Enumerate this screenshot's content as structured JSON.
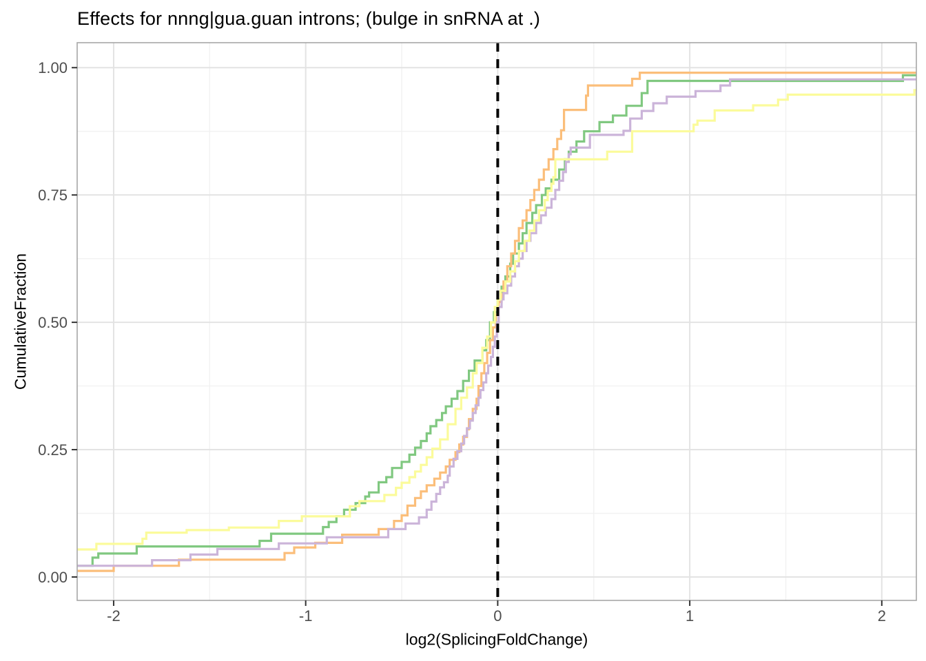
{
  "title": "Effects for nnng|gua.guan introns; (bulge in snRNA at .)",
  "chart_data": {
    "type": "line",
    "subtype": "step-ecdf",
    "title": "Effects for nnng|gua.guan introns; (bulge in snRNA at .)",
    "xlabel": "log2(SplicingFoldChange)",
    "ylabel": "CumulativeFraction",
    "xlim": [
      -2.19,
      2.18
    ],
    "ylim": [
      -0.046,
      1.049
    ],
    "grid": true,
    "legend": "none",
    "x_ticks": [
      {
        "v": -2,
        "label": "-2"
      },
      {
        "v": -1,
        "label": "-1"
      },
      {
        "v": 0,
        "label": "0"
      },
      {
        "v": 1,
        "label": "1"
      },
      {
        "v": 2,
        "label": "2"
      }
    ],
    "y_ticks": [
      {
        "v": 0.0,
        "label": "0.00"
      },
      {
        "v": 0.25,
        "label": "0.25"
      },
      {
        "v": 0.5,
        "label": "0.50"
      },
      {
        "v": 0.75,
        "label": "0.75"
      },
      {
        "v": 1.0,
        "label": "1.00"
      }
    ],
    "x_minor": [
      -1.5,
      -0.5,
      0.5,
      1.5
    ],
    "y_minor": [
      0.125,
      0.375,
      0.625,
      0.875
    ],
    "vline": {
      "x": 0,
      "color": "#000000",
      "dash": [
        13,
        11
      ],
      "width": 4
    },
    "colors": {
      "grid_major": "#E3E3E3",
      "grid_minor": "#F1F1F1",
      "panel_border": "#A6A6A6",
      "tick": "#333333",
      "tick_label": "#4D4D4D",
      "title_text": "#000000"
    },
    "series": [
      {
        "name": "green",
        "color": "#80C880",
        "start": 0.022,
        "points": [
          [
            -2.11,
            0.038
          ],
          [
            -2.08,
            0.046
          ],
          [
            -1.88,
            0.06
          ],
          [
            -1.24,
            0.071
          ],
          [
            -1.18,
            0.085
          ],
          [
            -0.91,
            0.098
          ],
          [
            -0.88,
            0.108
          ],
          [
            -0.84,
            0.119
          ],
          [
            -0.8,
            0.132
          ],
          [
            -0.74,
            0.145
          ],
          [
            -0.69,
            0.158
          ],
          [
            -0.67,
            0.166
          ],
          [
            -0.62,
            0.186
          ],
          [
            -0.58,
            0.196
          ],
          [
            -0.55,
            0.214
          ],
          [
            -0.5,
            0.226
          ],
          [
            -0.46,
            0.24
          ],
          [
            -0.43,
            0.254
          ],
          [
            -0.4,
            0.267
          ],
          [
            -0.37,
            0.282
          ],
          [
            -0.35,
            0.296
          ],
          [
            -0.32,
            0.308
          ],
          [
            -0.29,
            0.322
          ],
          [
            -0.27,
            0.335
          ],
          [
            -0.24,
            0.35
          ],
          [
            -0.21,
            0.365
          ],
          [
            -0.18,
            0.385
          ],
          [
            -0.15,
            0.405
          ],
          [
            -0.12,
            0.425
          ],
          [
            -0.08,
            0.445
          ],
          [
            -0.06,
            0.465
          ],
          [
            -0.04,
            0.5
          ],
          [
            -0.02,
            0.52
          ],
          [
            0.0,
            0.545
          ],
          [
            0.02,
            0.57
          ],
          [
            0.04,
            0.59
          ],
          [
            0.065,
            0.615
          ],
          [
            0.08,
            0.635
          ],
          [
            0.11,
            0.655
          ],
          [
            0.13,
            0.675
          ],
          [
            0.15,
            0.695
          ],
          [
            0.18,
            0.715
          ],
          [
            0.2,
            0.73
          ],
          [
            0.23,
            0.75
          ],
          [
            0.25,
            0.763
          ],
          [
            0.28,
            0.78
          ],
          [
            0.32,
            0.8
          ],
          [
            0.35,
            0.82
          ],
          [
            0.37,
            0.835
          ],
          [
            0.41,
            0.855
          ],
          [
            0.45,
            0.875
          ],
          [
            0.53,
            0.893
          ],
          [
            0.6,
            0.906
          ],
          [
            0.67,
            0.925
          ],
          [
            0.75,
            0.95
          ],
          [
            0.78,
            0.974
          ],
          [
            2.11,
            0.985
          ]
        ]
      },
      {
        "name": "orange",
        "color": "#FBBE7A",
        "start": 0.012,
        "points": [
          [
            -2.0,
            0.022
          ],
          [
            -1.66,
            0.034
          ],
          [
            -1.11,
            0.047
          ],
          [
            -1.06,
            0.058
          ],
          [
            -0.95,
            0.067
          ],
          [
            -0.81,
            0.083
          ],
          [
            -0.62,
            0.094
          ],
          [
            -0.54,
            0.11
          ],
          [
            -0.5,
            0.121
          ],
          [
            -0.47,
            0.14
          ],
          [
            -0.43,
            0.155
          ],
          [
            -0.4,
            0.168
          ],
          [
            -0.37,
            0.18
          ],
          [
            -0.33,
            0.193
          ],
          [
            -0.3,
            0.205
          ],
          [
            -0.27,
            0.217
          ],
          [
            -0.25,
            0.23
          ],
          [
            -0.22,
            0.245
          ],
          [
            -0.2,
            0.26
          ],
          [
            -0.18,
            0.275
          ],
          [
            -0.16,
            0.29
          ],
          [
            -0.15,
            0.31
          ],
          [
            -0.13,
            0.33
          ],
          [
            -0.11,
            0.35
          ],
          [
            -0.1,
            0.375
          ],
          [
            -0.085,
            0.4
          ],
          [
            -0.07,
            0.42
          ],
          [
            -0.055,
            0.44
          ],
          [
            -0.04,
            0.465
          ],
          [
            -0.025,
            0.49
          ],
          [
            -0.01,
            0.515
          ],
          [
            0.005,
            0.54
          ],
          [
            0.02,
            0.555
          ],
          [
            0.03,
            0.58
          ],
          [
            0.05,
            0.61
          ],
          [
            0.07,
            0.635
          ],
          [
            0.09,
            0.66
          ],
          [
            0.11,
            0.685
          ],
          [
            0.13,
            0.7
          ],
          [
            0.15,
            0.72
          ],
          [
            0.17,
            0.74
          ],
          [
            0.19,
            0.76
          ],
          [
            0.215,
            0.78
          ],
          [
            0.24,
            0.8
          ],
          [
            0.265,
            0.82
          ],
          [
            0.29,
            0.84
          ],
          [
            0.31,
            0.86
          ],
          [
            0.33,
            0.877
          ],
          [
            0.345,
            0.917
          ],
          [
            0.46,
            0.945
          ],
          [
            0.47,
            0.965
          ],
          [
            0.7,
            0.978
          ],
          [
            0.74,
            0.99
          ]
        ]
      },
      {
        "name": "purple",
        "color": "#CBB4D9",
        "start": 0.022,
        "points": [
          [
            -1.8,
            0.033
          ],
          [
            -1.6,
            0.044
          ],
          [
            -1.46,
            0.055
          ],
          [
            -1.14,
            0.066
          ],
          [
            -0.89,
            0.078
          ],
          [
            -0.57,
            0.094
          ],
          [
            -0.48,
            0.105
          ],
          [
            -0.41,
            0.117
          ],
          [
            -0.37,
            0.132
          ],
          [
            -0.345,
            0.148
          ],
          [
            -0.32,
            0.163
          ],
          [
            -0.3,
            0.176
          ],
          [
            -0.28,
            0.186
          ],
          [
            -0.26,
            0.199
          ],
          [
            -0.25,
            0.217
          ],
          [
            -0.23,
            0.232
          ],
          [
            -0.21,
            0.247
          ],
          [
            -0.19,
            0.262
          ],
          [
            -0.175,
            0.277
          ],
          [
            -0.16,
            0.292
          ],
          [
            -0.145,
            0.307
          ],
          [
            -0.13,
            0.322
          ],
          [
            -0.115,
            0.337
          ],
          [
            -0.1,
            0.352
          ],
          [
            -0.09,
            0.367
          ],
          [
            -0.075,
            0.382
          ],
          [
            -0.06,
            0.4
          ],
          [
            -0.05,
            0.415
          ],
          [
            -0.035,
            0.432
          ],
          [
            -0.025,
            0.452
          ],
          [
            -0.015,
            0.472
          ],
          [
            -0.005,
            0.5
          ],
          [
            0.005,
            0.53
          ],
          [
            0.02,
            0.545
          ],
          [
            0.03,
            0.557
          ],
          [
            0.05,
            0.572
          ],
          [
            0.07,
            0.59
          ],
          [
            0.09,
            0.61
          ],
          [
            0.11,
            0.625
          ],
          [
            0.13,
            0.64
          ],
          [
            0.15,
            0.66
          ],
          [
            0.17,
            0.675
          ],
          [
            0.2,
            0.695
          ],
          [
            0.225,
            0.71
          ],
          [
            0.25,
            0.725
          ],
          [
            0.28,
            0.742
          ],
          [
            0.3,
            0.76
          ],
          [
            0.32,
            0.778
          ],
          [
            0.34,
            0.795
          ],
          [
            0.355,
            0.815
          ],
          [
            0.37,
            0.83
          ],
          [
            0.38,
            0.843
          ],
          [
            0.48,
            0.868
          ],
          [
            0.655,
            0.876
          ],
          [
            0.69,
            0.9
          ],
          [
            0.75,
            0.915
          ],
          [
            0.81,
            0.93
          ],
          [
            0.88,
            0.943
          ],
          [
            1.03,
            0.954
          ],
          [
            1.16,
            0.965
          ],
          [
            1.21,
            0.977
          ]
        ]
      },
      {
        "name": "yellow",
        "color": "#FBFB9B",
        "start": 0.054,
        "points": [
          [
            -2.09,
            0.065
          ],
          [
            -1.85,
            0.075
          ],
          [
            -1.83,
            0.087
          ],
          [
            -1.62,
            0.092
          ],
          [
            -1.4,
            0.097
          ],
          [
            -1.14,
            0.11
          ],
          [
            -1.02,
            0.119
          ],
          [
            -0.77,
            0.139
          ],
          [
            -0.72,
            0.149
          ],
          [
            -0.59,
            0.161
          ],
          [
            -0.53,
            0.175
          ],
          [
            -0.5,
            0.185
          ],
          [
            -0.46,
            0.196
          ],
          [
            -0.43,
            0.207
          ],
          [
            -0.4,
            0.22
          ],
          [
            -0.37,
            0.235
          ],
          [
            -0.34,
            0.252
          ],
          [
            -0.3,
            0.27
          ],
          [
            -0.26,
            0.3
          ],
          [
            -0.22,
            0.33
          ],
          [
            -0.19,
            0.352
          ],
          [
            -0.16,
            0.372
          ],
          [
            -0.13,
            0.4
          ],
          [
            -0.11,
            0.42
          ],
          [
            -0.08,
            0.45
          ],
          [
            -0.055,
            0.472
          ],
          [
            -0.035,
            0.5
          ],
          [
            -0.015,
            0.53
          ],
          [
            0.0,
            0.545
          ],
          [
            0.015,
            0.562
          ],
          [
            0.04,
            0.58
          ],
          [
            0.065,
            0.6
          ],
          [
            0.09,
            0.62
          ],
          [
            0.11,
            0.64
          ],
          [
            0.14,
            0.66
          ],
          [
            0.165,
            0.68
          ],
          [
            0.19,
            0.7
          ],
          [
            0.215,
            0.72
          ],
          [
            0.245,
            0.74
          ],
          [
            0.26,
            0.758
          ],
          [
            0.28,
            0.772
          ],
          [
            0.29,
            0.785
          ],
          [
            0.3,
            0.82
          ],
          [
            0.57,
            0.835
          ],
          [
            0.7,
            0.875
          ],
          [
            1.02,
            0.888
          ],
          [
            1.04,
            0.896
          ],
          [
            1.13,
            0.916
          ],
          [
            1.33,
            0.926
          ],
          [
            1.46,
            0.937
          ],
          [
            1.51,
            0.947
          ],
          [
            2.17,
            0.956
          ]
        ]
      }
    ]
  }
}
